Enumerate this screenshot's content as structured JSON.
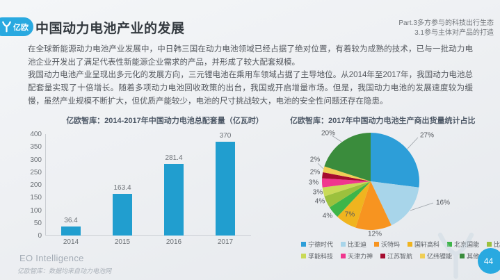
{
  "header": {
    "logo_text": "亿欧",
    "title": "中国动力电池产业的发展",
    "part_line1": "Part.3多方参与的科技出行生态",
    "part_line2": "3.1参与主体对产品的打造"
  },
  "body": {
    "paragraph1": "在全球新能源动力电池产业发展中，中日韩三国在动力电池领域已经占据了绝对位置，有着较为成熟的技术，已与一批动力电池企业开发出了满足代表性新能源企业需求的产品，并形成了较大配套规模。",
    "paragraph2": "我国动力电池产业呈现出多元化的发展方向，三元锂电池在乘用车领域占据了主导地位。从2014年至2017年，我国动力电池总配套量实现了十倍增长。随着多项动力电池回收政策的出台，我国或开启增量市场。但是，我国动力电池的发展速度较为缓慢，虽然产业规模不断扩大，但优质产能较少，电池的尺寸挑战较大，电池的安全性问题还存在隐患。"
  },
  "chart_data": [
    {
      "type": "bar",
      "title": "亿欧智库：2014-2017年中国动力电池总配套量（亿瓦时）",
      "categories": [
        "2014",
        "2015",
        "2016",
        "2017"
      ],
      "values": [
        36.4,
        163.4,
        281.4,
        370
      ],
      "value_labels": [
        "36.4",
        "163.4",
        "281.4",
        "370"
      ],
      "xlabel": "",
      "ylabel": "",
      "ylim": [
        0,
        400
      ],
      "yticks": [
        0,
        50,
        100,
        150,
        200,
        250,
        300,
        350,
        400
      ],
      "grid": false,
      "legend_position": "none",
      "bar_color": "#219ecf"
    },
    {
      "type": "pie",
      "title": "亿欧智库：2017年中国动力电池生产商出货量统计占比",
      "labels": [
        "宁德时代",
        "比亚迪",
        "沃特玛",
        "国轩高科",
        "北京国能",
        "比克电池",
        "孚能科技",
        "天津力神",
        "江苏智航",
        "亿纬锂能",
        "其他"
      ],
      "values": [
        27,
        16,
        12,
        7,
        4,
        4,
        3,
        3,
        2,
        2,
        20
      ],
      "percent_labels": [
        "27%",
        "16%",
        "12%",
        "7%",
        "4%",
        "4%",
        "3%",
        "3%",
        "2%",
        "2%",
        "20%"
      ],
      "colors": [
        "#2d9ed8",
        "#a8d5ea",
        "#f79420",
        "#f0b41f",
        "#3eb549",
        "#9cc13d",
        "#c9da57",
        "#f0368e",
        "#a50c2f",
        "#f0ce55",
        "#3a8c3c"
      ],
      "start_angle_deg": 0,
      "direction": "clockwise",
      "legend_position": "bottom"
    }
  ],
  "footer": {
    "brand": "EO Intelligence",
    "source_note": "亿欧智库：数据均来自动力电池网",
    "page_number": "44"
  },
  "colors": {
    "accent": "#29a9e0",
    "bar": "#219ecf",
    "title_text": "#343a40",
    "body_text": "#54585e"
  }
}
